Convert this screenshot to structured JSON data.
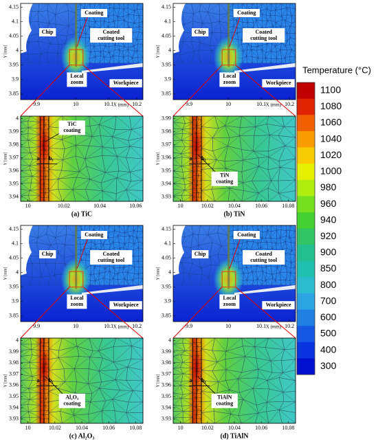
{
  "legend": {
    "title": "Temperature (°C)",
    "labels": [
      "1100",
      "1080",
      "1060",
      "1040",
      "1020",
      "1000",
      "980",
      "960",
      "940",
      "920",
      "900",
      "850",
      "800",
      "700",
      "600",
      "500",
      "400",
      "300"
    ],
    "colors": [
      "#c00000",
      "#e02400",
      "#f06000",
      "#f89c00",
      "#f8cc00",
      "#e4f000",
      "#b0ee10",
      "#74e020",
      "#44d030",
      "#30c464",
      "#22c090",
      "#20c0b0",
      "#2cbcd0",
      "#2ca4e4",
      "#2080e4",
      "#1458e4",
      "#0a34e0",
      "#0012d0"
    ]
  },
  "panels": [
    {
      "caption": "(a) TiC",
      "overview": {
        "chip": "Chip",
        "coating": "Coating",
        "tool": [
          "Coated",
          "cutting tool"
        ],
        "zoom": [
          "Local",
          "zoom"
        ],
        "workpiece": "Workpiece",
        "x_ticks": [
          "9.9",
          "10",
          "10.1",
          "10.2"
        ],
        "y_ticks": [
          "4.15",
          "4.1",
          "4.05",
          "4",
          "3.95",
          "3.9",
          "3.85"
        ],
        "x_axis": "X (mm)",
        "y_axis": "Y [mm]"
      },
      "zoom": {
        "x_ticks": [
          "10",
          "10.02",
          "10.04",
          "10.06"
        ],
        "y_ticks": [
          "4",
          "3.99",
          "3.98",
          "3.97",
          "3.96",
          "3.95",
          "3.94"
        ],
        "y_axis": "Y [mm]",
        "coating_label": [
          "TiC",
          "coating"
        ],
        "a": "a₁",
        "b": "b₁"
      }
    },
    {
      "caption": "(b) TiN",
      "overview": {
        "chip": "Chip",
        "coating": "Coating",
        "tool": [
          "Coated",
          "cutting tool"
        ],
        "zoom": [
          "Local",
          "zoom"
        ],
        "workpiece": "Workpiece",
        "x_ticks": [
          "9.9",
          "10",
          "10.1",
          "10.2"
        ],
        "y_ticks": [
          "4.15",
          "4.1",
          "4.05",
          "4",
          "3.95",
          "3.9",
          "3.85"
        ],
        "x_axis": "X (mm)",
        "y_axis": "Y [mm]"
      },
      "zoom": {
        "x_ticks": [
          "10",
          "10.02",
          "10.04",
          "10.06",
          "10.08"
        ],
        "y_ticks": [
          "3.99",
          "3.98",
          "3.97",
          "3.96",
          "3.95",
          "3.94",
          "3.93"
        ],
        "y_axis": "Y [mm]",
        "coating_label": [
          "TiN",
          "coating"
        ],
        "a": "a₁",
        "b": "b₁"
      }
    },
    {
      "caption": "(c) Al₂O₃",
      "overview": {
        "chip": "Chip",
        "coating": "Coating",
        "tool": [
          "Coated",
          "cutting tool"
        ],
        "zoom": [
          "Local",
          "zoom"
        ],
        "workpiece": "Workpiece",
        "x_ticks": [
          "9.9",
          "10",
          "10.1",
          "10.2"
        ],
        "y_ticks": [
          "4.15",
          "4.1",
          "4.05",
          "4",
          "3.95",
          "3.9",
          "3.85"
        ],
        "x_axis": "X (mm)",
        "y_axis": "Y [mm]"
      },
      "zoom": {
        "x_ticks": [
          "10",
          "10.02",
          "10.04",
          "10.06",
          "10.08"
        ],
        "y_ticks": [
          "4",
          "3.99",
          "3.98",
          "3.97",
          "3.96",
          "3.95",
          "3.94",
          "3.93"
        ],
        "y_axis": "Y [mm]",
        "coating_label": [
          "Al₂O₃",
          "coating"
        ],
        "a": "a₁",
        "b": "b₁"
      }
    },
    {
      "caption": "(d) TiAlN",
      "overview": {
        "chip": "Chip",
        "coating": "Coating",
        "tool": [
          "Coated",
          "cutting tool"
        ],
        "zoom": [
          "Local",
          "zoom"
        ],
        "workpiece": "Workpiece",
        "x_ticks": [
          "9.9",
          "10",
          "10.1",
          "10.2"
        ],
        "y_ticks": [
          "4.15",
          "4.1",
          "4.05",
          "4",
          "3.95",
          "3.9",
          "3.85"
        ],
        "x_axis": "X (mm)",
        "y_axis": "Y [mm]"
      },
      "zoom": {
        "x_ticks": [
          "10",
          "10.02",
          "10.04",
          "10.06",
          "10.08"
        ],
        "y_ticks": [
          "4",
          "3.99",
          "3.98",
          "3.97",
          "3.96",
          "3.95",
          "3.94",
          "3.93"
        ],
        "y_axis": "Y [mm]",
        "coating_label": [
          "TiAlN",
          "coating"
        ],
        "a": "a₁",
        "b": "b₁"
      }
    }
  ]
}
